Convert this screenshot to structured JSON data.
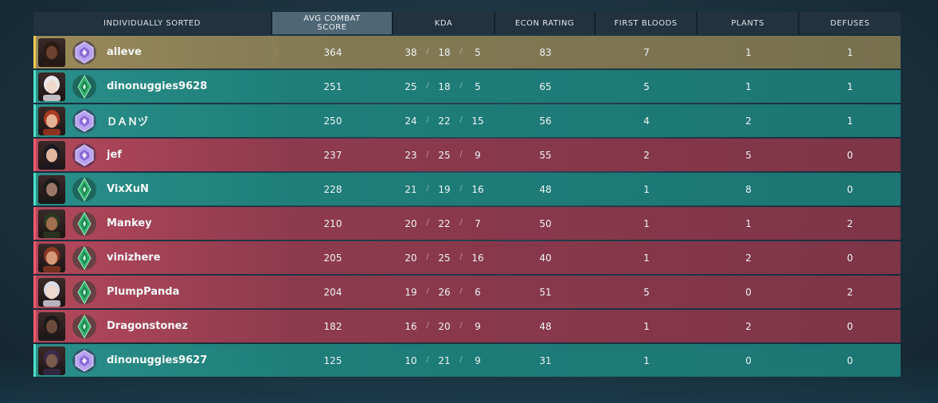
{
  "headers": {
    "name": "INDIVIDUALLY SORTED",
    "acs_line1": "AVG COMBAT",
    "acs_line2": "SCORE",
    "kda": "KDA",
    "econ": "ECON RATING",
    "first_bloods": "FIRST BLOODS",
    "plants": "PLANTS",
    "defuses": "DEFUSES"
  },
  "kda_separator": "/",
  "colors": {
    "team_green": "#1f7e7a",
    "team_red": "#8e3a4e",
    "self": "#847a55",
    "rank_platinum": "#9b7fe0",
    "rank_emerald": "#2fae6a"
  },
  "players": [
    {
      "name": "alleve",
      "team": "self",
      "rank_icon": "platinum-rank-icon",
      "acs": "364",
      "k": "38",
      "d": "18",
      "a": "5",
      "econ": "83",
      "fb": "7",
      "plants": "1",
      "defuses": "1"
    },
    {
      "name": "dinonuggies9628",
      "team": "green",
      "rank_icon": "emerald-rank-icon",
      "acs": "251",
      "k": "25",
      "d": "18",
      "a": "5",
      "econ": "65",
      "fb": "5",
      "plants": "1",
      "defuses": "1"
    },
    {
      "name": "ＤＡＮヅ",
      "team": "green",
      "rank_icon": "platinum-rank-icon",
      "acs": "250",
      "k": "24",
      "d": "22",
      "a": "15",
      "econ": "56",
      "fb": "4",
      "plants": "2",
      "defuses": "1"
    },
    {
      "name": "jef",
      "team": "red",
      "rank_icon": "platinum-rank-icon",
      "acs": "237",
      "k": "23",
      "d": "25",
      "a": "9",
      "econ": "55",
      "fb": "2",
      "plants": "5",
      "defuses": "0"
    },
    {
      "name": "VixXuN",
      "team": "green",
      "rank_icon": "emerald-rank-icon",
      "acs": "228",
      "k": "21",
      "d": "19",
      "a": "16",
      "econ": "48",
      "fb": "1",
      "plants": "8",
      "defuses": "0"
    },
    {
      "name": "Mankey",
      "team": "red",
      "rank_icon": "emerald-rank-icon",
      "acs": "210",
      "k": "20",
      "d": "22",
      "a": "7",
      "econ": "50",
      "fb": "1",
      "plants": "1",
      "defuses": "2"
    },
    {
      "name": "vinizhere",
      "team": "red",
      "rank_icon": "emerald-rank-icon",
      "acs": "205",
      "k": "20",
      "d": "25",
      "a": "16",
      "econ": "40",
      "fb": "1",
      "plants": "2",
      "defuses": "0"
    },
    {
      "name": "PlumpPanda",
      "team": "red",
      "rank_icon": "emerald-rank-icon",
      "acs": "204",
      "k": "19",
      "d": "26",
      "a": "6",
      "econ": "51",
      "fb": "5",
      "plants": "0",
      "defuses": "2"
    },
    {
      "name": "Dragonstonez",
      "team": "red",
      "rank_icon": "emerald-rank-icon",
      "acs": "182",
      "k": "16",
      "d": "20",
      "a": "9",
      "econ": "48",
      "fb": "1",
      "plants": "2",
      "defuses": "0"
    },
    {
      "name": "dinonuggies9627",
      "team": "green",
      "rank_icon": "platinum-rank-icon",
      "acs": "125",
      "k": "10",
      "d": "21",
      "a": "9",
      "econ": "31",
      "fb": "1",
      "plants": "0",
      "defuses": "0"
    }
  ]
}
